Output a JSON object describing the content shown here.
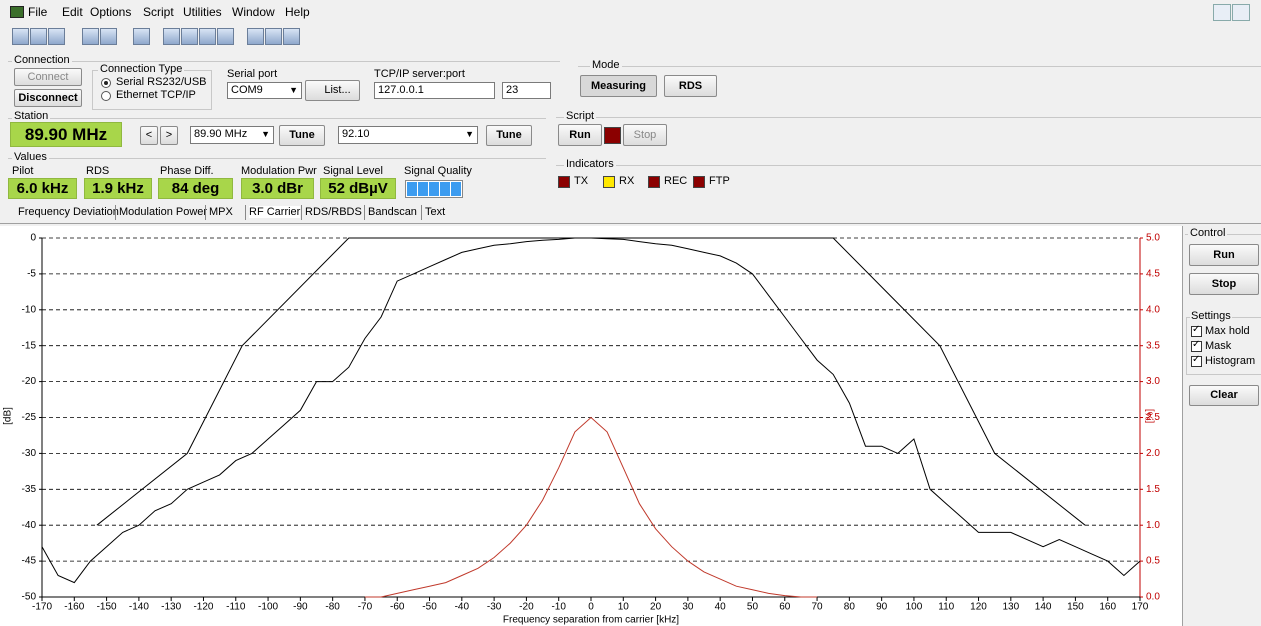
{
  "menu": [
    "File",
    "Edit",
    "Options",
    "Script",
    "Utilities",
    "Window",
    "Help"
  ],
  "connection": {
    "title": "Connection",
    "connect": "Connect",
    "disconnect": "Disconnect",
    "type_title": "Connection Type",
    "types": [
      {
        "label": "Serial RS232/USB",
        "selected": true
      },
      {
        "label": "Ethernet TCP/IP",
        "selected": false
      }
    ],
    "serial_label": "Serial port",
    "serial_port": "COM9",
    "list_button": "List...",
    "tcp_label": "TCP/IP server:port",
    "tcp_server": "127.0.0.1",
    "tcp_port": "23"
  },
  "mode": {
    "title": "Mode",
    "buttons": [
      "Measuring",
      "RDS"
    ]
  },
  "station": {
    "title": "Station",
    "frequency": "89.90 MHz",
    "prev": "<",
    "next": ">",
    "preset": "89.90 MHz",
    "tune": "Tune",
    "manual": "92.10",
    "tune2": "Tune"
  },
  "script": {
    "title": "Script",
    "run": "Run",
    "stop": "Stop"
  },
  "values": {
    "title": "Values",
    "items": [
      {
        "label": "Pilot",
        "value": "6.0 kHz"
      },
      {
        "label": "RDS",
        "value": "1.9 kHz"
      },
      {
        "label": "Phase Diff.",
        "value": "84 deg"
      },
      {
        "label": "Modulation Pwr",
        "value": "3.0 dBr"
      },
      {
        "label": "Signal Level",
        "value": "52 dBµV"
      },
      {
        "label": "Signal Quality"
      }
    ]
  },
  "indicators": {
    "title": "Indicators",
    "items": [
      {
        "label": "TX",
        "color": "#8b0000"
      },
      {
        "label": "RX",
        "color": "#ffe800"
      },
      {
        "label": "REC",
        "color": "#8b0000"
      },
      {
        "label": "FTP",
        "color": "#8b0000"
      }
    ]
  },
  "tabs": [
    "Frequency Deviation",
    "Modulation Power",
    "MPX",
    "RF Carrier",
    "RDS/RBDS",
    "Bandscan",
    "Text"
  ],
  "control": {
    "title": "Control",
    "run": "Run",
    "stop": "Stop",
    "settings_title": "Settings",
    "settings": [
      {
        "label": "Max hold",
        "checked": true
      },
      {
        "label": "Mask",
        "checked": true
      },
      {
        "label": "Histogram",
        "checked": true
      }
    ],
    "clear": "Clear"
  },
  "chart_data": {
    "type": "line",
    "xlabel": "Frequency separation from carrier [kHz]",
    "ylabel": "[dB]",
    "y2label": "[%]",
    "xlim": [
      -170,
      170
    ],
    "xticks": [
      -170,
      -160,
      -150,
      -140,
      -130,
      -120,
      -110,
      -100,
      -90,
      -80,
      -70,
      -60,
      -50,
      -40,
      -30,
      -20,
      -10,
      0,
      10,
      20,
      30,
      40,
      50,
      60,
      70,
      80,
      90,
      100,
      110,
      120,
      130,
      140,
      150,
      160,
      170
    ],
    "ylim": [
      -50,
      0
    ],
    "yticks": [
      0,
      -5,
      -10,
      -15,
      -20,
      -25,
      -30,
      -35,
      -40,
      -45,
      -50
    ],
    "y2lim": [
      0,
      5
    ],
    "y2ticks": [
      {
        "value": 0,
        "label": "0.0"
      },
      {
        "value": 0.5,
        "label": "0.5"
      },
      {
        "value": 1,
        "label": "1.0"
      },
      {
        "value": 1.5,
        "label": "1.5"
      },
      {
        "value": 2,
        "label": "2.0"
      },
      {
        "value": 2.5,
        "label": "2.5"
      },
      {
        "value": 3,
        "label": "3.0"
      },
      {
        "value": 3.5,
        "label": "3.5"
      },
      {
        "value": 4,
        "label": "4.0"
      },
      {
        "value": 4.5,
        "label": "4.5"
      },
      {
        "value": 5,
        "label": "5.0"
      }
    ],
    "y2color": "#c00000",
    "grid": true,
    "series": [
      {
        "name": "Mask",
        "color": "#000000",
        "x": [
          -153,
          -125,
          -108,
          -75,
          75,
          108,
          125,
          153
        ],
        "values": [
          -40,
          -30,
          -15,
          0,
          0,
          -15,
          -30,
          -40
        ]
      },
      {
        "name": "Max hold",
        "color": "#000000",
        "x": [
          -170,
          -165,
          -160,
          -155,
          -150,
          -145,
          -140,
          -135,
          -130,
          -125,
          -120,
          -115,
          -110,
          -105,
          -100,
          -95,
          -90,
          -85,
          -80,
          -75,
          -70,
          -65,
          -60,
          -55,
          -50,
          -45,
          -40,
          -35,
          -30,
          -25,
          -20,
          -15,
          -10,
          -5,
          0,
          5,
          10,
          15,
          20,
          25,
          30,
          35,
          40,
          45,
          50,
          55,
          60,
          65,
          70,
          75,
          80,
          85,
          90,
          95,
          100,
          105,
          110,
          115,
          120,
          125,
          130,
          135,
          140,
          145,
          150,
          155,
          160,
          165,
          170
        ],
        "values": [
          -43,
          -47,
          -48,
          -45,
          -43,
          -41,
          -40,
          -38,
          -37,
          -35,
          -34,
          -33,
          -31,
          -30,
          -28,
          -26,
          -24,
          -20,
          -20,
          -18,
          -14,
          -11,
          -6,
          -5,
          -4,
          -3,
          -2,
          -1.5,
          -1,
          -0.8,
          -0.5,
          -0.3,
          -0.2,
          0,
          0,
          -0.1,
          -0.2,
          -0.5,
          -0.8,
          -1,
          -1.5,
          -2,
          -2.5,
          -3.5,
          -5,
          -8,
          -11,
          -14,
          -17,
          -19,
          -23,
          -29,
          -29,
          -30,
          -28,
          -35,
          -37,
          -39,
          -41,
          -41,
          -41,
          -42,
          -43,
          -42,
          -43,
          -44,
          -45,
          -47,
          -45
        ]
      },
      {
        "name": "Histogram",
        "color": "#c0392b",
        "axis": "y2",
        "x": [
          -70,
          -65,
          -60,
          -55,
          -50,
          -45,
          -40,
          -35,
          -30,
          -25,
          -20,
          -15,
          -10,
          -5,
          0,
          5,
          10,
          15,
          20,
          25,
          30,
          35,
          40,
          45,
          50,
          55,
          60,
          65,
          70
        ],
        "values": [
          0,
          0,
          0.05,
          0.1,
          0.15,
          0.2,
          0.3,
          0.4,
          0.55,
          0.75,
          1,
          1.35,
          1.8,
          2.3,
          2.5,
          2.3,
          1.8,
          1.3,
          0.95,
          0.7,
          0.5,
          0.35,
          0.25,
          0.15,
          0.1,
          0.05,
          0.02,
          0,
          0
        ]
      }
    ]
  }
}
